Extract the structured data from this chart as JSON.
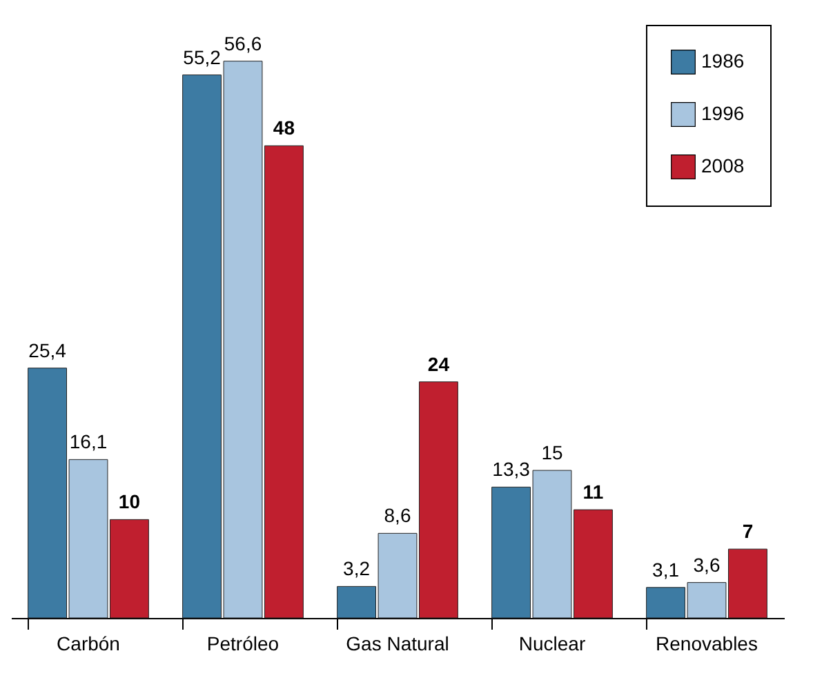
{
  "chart_data": {
    "type": "bar",
    "categories": [
      "Carbón",
      "Petróleo",
      "Gas Natural",
      "Nuclear",
      "Renovables"
    ],
    "series": [
      {
        "name": "1986",
        "color": "#3d7ba3",
        "values": [
          25.4,
          55.2,
          3.2,
          13.3,
          3.1
        ],
        "value_labels": [
          "25,4",
          "55,2",
          "3,2",
          "13,3",
          "3,1"
        ]
      },
      {
        "name": "1996",
        "color": "#a8c5df",
        "values": [
          16.1,
          56.6,
          8.6,
          15,
          3.6
        ],
        "value_labels": [
          "16,1",
          "56,6",
          "8,6",
          "15",
          "3,6"
        ]
      },
      {
        "name": "2008",
        "color": "#c01f2f",
        "values": [
          10,
          48,
          24,
          11,
          7
        ],
        "value_labels": [
          "10",
          "48",
          "24",
          "11",
          "7"
        ]
      }
    ],
    "legend": "top right",
    "grid": false
  }
}
